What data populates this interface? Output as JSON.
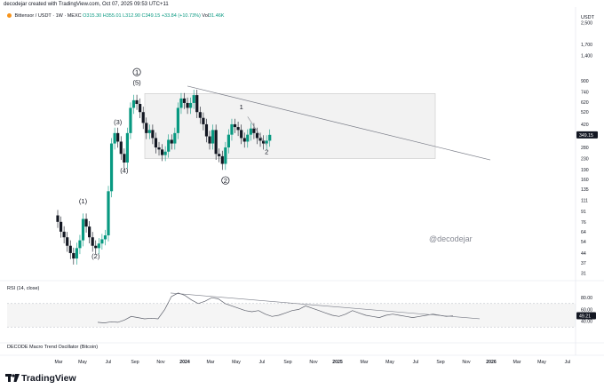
{
  "header": {
    "caption": "decodejar created with TradingView.com, Oct 07, 2025 09:53 UTC+11",
    "symbol": "Bittensor / USDT · 1W · MEXC",
    "ohlc": "O315.30 H355.01 L312.90 C349.15 +33.84 (+10.73%)",
    "volume_label": "Vol",
    "volume_value": "31.46K"
  },
  "price_axis": {
    "currency": "USDT",
    "current_price": "349.15"
  },
  "watermark": "@decodejar",
  "rsi": {
    "label": "RSI (14, close)",
    "value_text": "49.21"
  },
  "decode": {
    "label": "DECODE Macro Trend Oscillator (Bitcoin)"
  },
  "brand": {
    "name": "TradingView"
  },
  "wave_labels": {
    "w1": "(1)",
    "w2": "(2)",
    "w3": "(3)",
    "w4": "(4)",
    "w5": "(5)",
    "circle1": "1",
    "circle2": "2",
    "sub1": "1",
    "sub2": "2"
  },
  "colors": {
    "up": "#089981",
    "down": "#131722",
    "box": "#e6e6e6",
    "line": "#787b86"
  },
  "chart_data": [
    {
      "type": "candlestick",
      "title": "Bittensor / USDT · 1W · MEXC",
      "y_scale": "log",
      "y_ticks": [
        2500,
        1700,
        1400,
        900,
        740,
        620,
        520,
        420,
        340,
        280,
        230,
        190,
        160,
        135,
        111,
        91,
        76,
        64,
        54,
        44,
        37,
        31
      ],
      "y_tick_labels": [
        "2,500",
        "1,700",
        "1,400",
        "900",
        "740",
        "620",
        "520",
        "420",
        "340",
        "280",
        "230",
        "190",
        "160",
        "135",
        "111",
        "91",
        "76",
        "64",
        "54",
        "44",
        "37",
        "31"
      ],
      "x_tick_labels": [
        "Mar",
        "May",
        "Jul",
        "Sep",
        "Nov",
        "2024",
        "Mar",
        "May",
        "Jul",
        "Sep",
        "Nov",
        "2025",
        "Mar",
        "May",
        "Jul",
        "Sep",
        "Nov",
        "2026",
        "Mar",
        "May",
        "Jul"
      ],
      "range_box": {
        "low": 230,
        "high": 720
      },
      "series": [
        {
          "type": "close",
          "x": [
            "2023-03-13",
            "2023-03-27",
            "2023-04-10",
            "2023-04-24",
            "2023-05-08",
            "2023-05-22",
            "2023-06-05",
            "2023-06-19",
            "2023-07-03",
            "2023-07-17",
            "2023-07-31",
            "2023-08-14",
            "2023-08-28",
            "2023-09-11",
            "2023-09-25",
            "2023-10-09",
            "2023-10-23",
            "2023-11-06",
            "2023-11-20",
            "2023-12-04",
            "2023-12-18",
            "2024-01-01",
            "2024-01-15",
            "2024-01-29",
            "2024-02-12",
            "2024-02-26",
            "2024-03-11",
            "2024-03-25",
            "2024-04-08",
            "2024-04-22",
            "2024-05-06",
            "2024-05-20",
            "2024-06-03",
            "2024-06-17",
            "2024-07-01",
            "2024-07-15",
            "2024-07-29",
            "2024-08-12",
            "2024-08-26",
            "2024-09-09",
            "2024-09-23",
            "2024-10-07",
            "2024-10-21",
            "2024-11-04",
            "2024-11-18",
            "2024-12-02",
            "2024-12-16",
            "2024-12-30",
            "2025-01-13",
            "2025-01-27",
            "2025-02-10",
            "2025-02-24",
            "2025-03-10",
            "2025-03-24",
            "2025-04-07",
            "2025-04-21",
            "2025-05-05",
            "2025-05-19",
            "2025-06-02",
            "2025-06-16",
            "2025-06-30",
            "2025-07-14",
            "2025-07-28",
            "2025-08-11",
            "2025-08-25",
            "2025-09-08",
            "2025-09-22",
            "2025-10-06"
          ],
          "values": [
            76,
            64,
            58,
            50,
            44,
            40,
            48,
            55,
            80,
            70,
            58,
            50,
            48,
            52,
            56,
            60,
            130,
            300,
            360,
            310,
            250,
            215,
            360,
            560,
            640,
            600,
            520,
            430,
            360,
            380,
            330,
            280,
            270,
            245,
            260,
            320,
            300,
            360,
            560,
            660,
            610,
            560,
            610,
            700,
            520,
            470,
            420,
            340,
            300,
            380,
            250,
            240,
            210,
            280,
            350,
            420,
            400,
            380,
            330,
            310,
            350,
            390,
            360,
            330,
            315,
            300,
            315,
            349
          ]
        }
      ],
      "wave_annotations": [
        {
          "label": "(1)",
          "x": "2023-07-03",
          "y": 105
        },
        {
          "label": "(2)",
          "x": "2023-08-28",
          "y": 40
        },
        {
          "label": "(3)",
          "x": "2023-12-04",
          "y": 420
        },
        {
          "label": "(4)",
          "x": "2024-01-01",
          "y": 180
        },
        {
          "label": "(5)",
          "x": "2024-02-26",
          "y": 840
        },
        {
          "label": "1",
          "x": "2024-02-26",
          "y": 1000
        },
        {
          "label": "2",
          "x": "2025-03-24",
          "y": 150
        },
        {
          "label": "1",
          "x": "2025-06-02",
          "y": 545
        },
        {
          "label": "2",
          "x": "2025-09-22",
          "y": 250
        }
      ]
    },
    {
      "type": "line",
      "title": "RSI (14, close)",
      "y_ticks": [
        80,
        60,
        40
      ],
      "value_label": "49.21",
      "current_value": 49.21,
      "series": [
        {
          "name": "RSI",
          "values": [
            38,
            37,
            39,
            38,
            42,
            48,
            46,
            44,
            45,
            44,
            60,
            82,
            88,
            84,
            76,
            70,
            74,
            80,
            78,
            70,
            66,
            62,
            58,
            56,
            58,
            52,
            48,
            50,
            54,
            58,
            60,
            66,
            62,
            58,
            54,
            50,
            48,
            52,
            58,
            54,
            50,
            48,
            46,
            50,
            52,
            50,
            48,
            46,
            48,
            50,
            52,
            50,
            48,
            49
          ]
        }
      ]
    },
    {
      "type": "line",
      "title": "DECODE Macro Trend Oscillator (Bitcoin)",
      "series": []
    }
  ]
}
